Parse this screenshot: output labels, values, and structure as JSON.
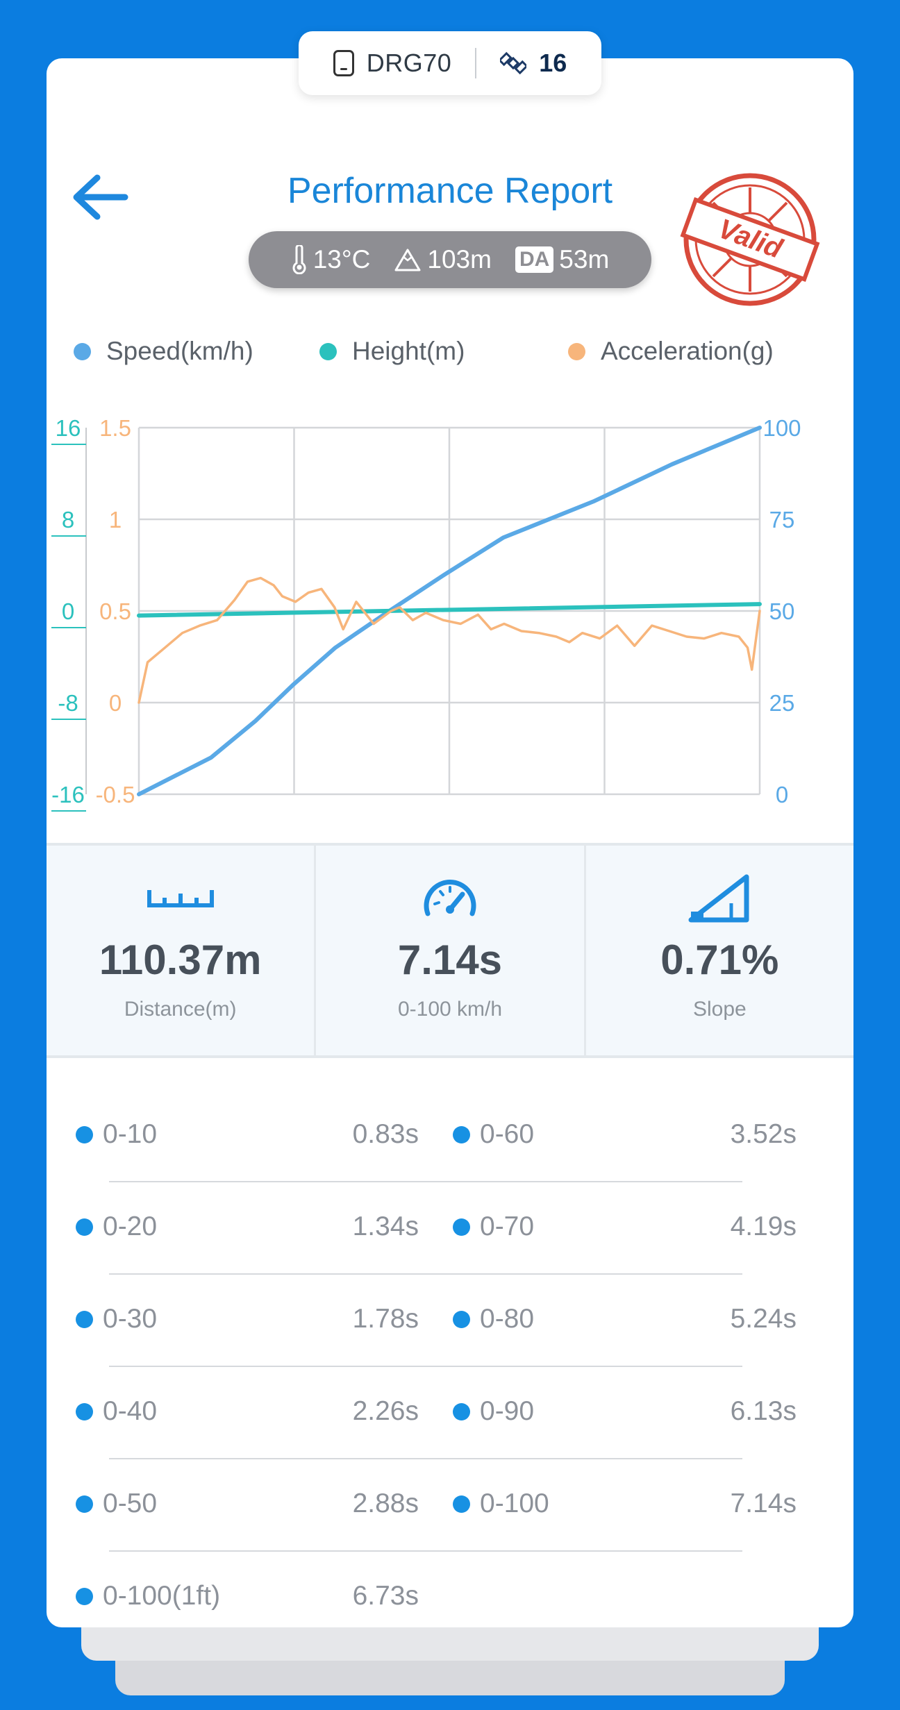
{
  "device": {
    "name": "DRG70",
    "satellites": "16"
  },
  "header": {
    "title": "Performance Report",
    "stamp_text": "Valid"
  },
  "conditions": {
    "temperature": "13°C",
    "altitude": "103m",
    "da_label": "DA",
    "density_altitude": "53m"
  },
  "legend": [
    {
      "label": "Speed(km/h)",
      "color": "#5aa9e6"
    },
    {
      "label": "Height(m)",
      "color": "#2bc1bd"
    },
    {
      "label": "Acceleration(g)",
      "color": "#f7b57b"
    }
  ],
  "chart_data": {
    "type": "line",
    "x_range": [
      0,
      7.14
    ],
    "grid": true,
    "axes": {
      "height": {
        "ticks": [
          "16",
          "8",
          "0",
          "-8",
          "-16"
        ],
        "ylim": [
          -16,
          16
        ],
        "color": "#2bc1bd",
        "side": "left-outer"
      },
      "acceleration": {
        "ticks": [
          "1.5",
          "1",
          "0.5",
          "0",
          "-0.5"
        ],
        "ylim": [
          -0.5,
          1.5
        ],
        "color": "#f7b57b",
        "side": "left-inner"
      },
      "speed": {
        "ticks": [
          "100",
          "75",
          "50",
          "25",
          "0"
        ],
        "ylim": [
          0,
          100
        ],
        "color": "#5aa9e6",
        "side": "right"
      }
    },
    "series": [
      {
        "name": "Speed(km/h)",
        "axis": "speed",
        "color": "#5aa9e6",
        "x": [
          0,
          0.83,
          1.34,
          1.78,
          2.26,
          2.88,
          3.52,
          4.19,
          5.24,
          6.13,
          7.14
        ],
        "y": [
          0,
          10,
          20,
          30,
          40,
          50,
          60,
          70,
          80,
          90,
          100
        ]
      },
      {
        "name": "Height(m)",
        "axis": "height",
        "color": "#2bc1bd",
        "x": [
          0,
          7.14
        ],
        "y": [
          -0.4,
          0.6
        ]
      },
      {
        "name": "Acceleration(g)",
        "axis": "acceleration",
        "color": "#f7b57b",
        "x": [
          0,
          0.1,
          0.3,
          0.5,
          0.7,
          0.9,
          1.1,
          1.25,
          1.4,
          1.55,
          1.65,
          1.8,
          1.95,
          2.1,
          2.25,
          2.35,
          2.5,
          2.7,
          2.9,
          3.0,
          3.15,
          3.3,
          3.5,
          3.7,
          3.9,
          4.05,
          4.2,
          4.4,
          4.6,
          4.8,
          4.95,
          5.1,
          5.3,
          5.5,
          5.7,
          5.9,
          6.1,
          6.3,
          6.5,
          6.7,
          6.9,
          7.0,
          7.05,
          7.14
        ],
        "y": [
          0,
          0.22,
          0.3,
          0.38,
          0.42,
          0.45,
          0.56,
          0.66,
          0.68,
          0.64,
          0.58,
          0.55,
          0.6,
          0.62,
          0.52,
          0.4,
          0.55,
          0.43,
          0.5,
          0.52,
          0.45,
          0.49,
          0.45,
          0.43,
          0.48,
          0.4,
          0.43,
          0.39,
          0.38,
          0.36,
          0.33,
          0.38,
          0.35,
          0.42,
          0.31,
          0.42,
          0.39,
          0.36,
          0.35,
          0.38,
          0.36,
          0.3,
          0.18,
          0.5
        ]
      }
    ]
  },
  "stats": [
    {
      "value": "110.37m",
      "label": "Distance(m)",
      "icon": "ruler-icon"
    },
    {
      "value": "7.14s",
      "label": "0-100 km/h",
      "icon": "speedometer-icon"
    },
    {
      "value": "0.71%",
      "label": "Slope",
      "icon": "slope-icon"
    }
  ],
  "splits": [
    {
      "left_label": "0-10",
      "left_time": "0.83s",
      "right_label": "0-60",
      "right_time": "3.52s"
    },
    {
      "left_label": "0-20",
      "left_time": "1.34s",
      "right_label": "0-70",
      "right_time": "4.19s"
    },
    {
      "left_label": "0-30",
      "left_time": "1.78s",
      "right_label": "0-80",
      "right_time": "5.24s"
    },
    {
      "left_label": "0-40",
      "left_time": "2.26s",
      "right_label": "0-90",
      "right_time": "6.13s"
    },
    {
      "left_label": "0-50",
      "left_time": "2.88s",
      "right_label": "0-100",
      "right_time": "7.14s"
    },
    {
      "left_label": "0-100(1ft)",
      "left_time": "6.73s"
    }
  ]
}
